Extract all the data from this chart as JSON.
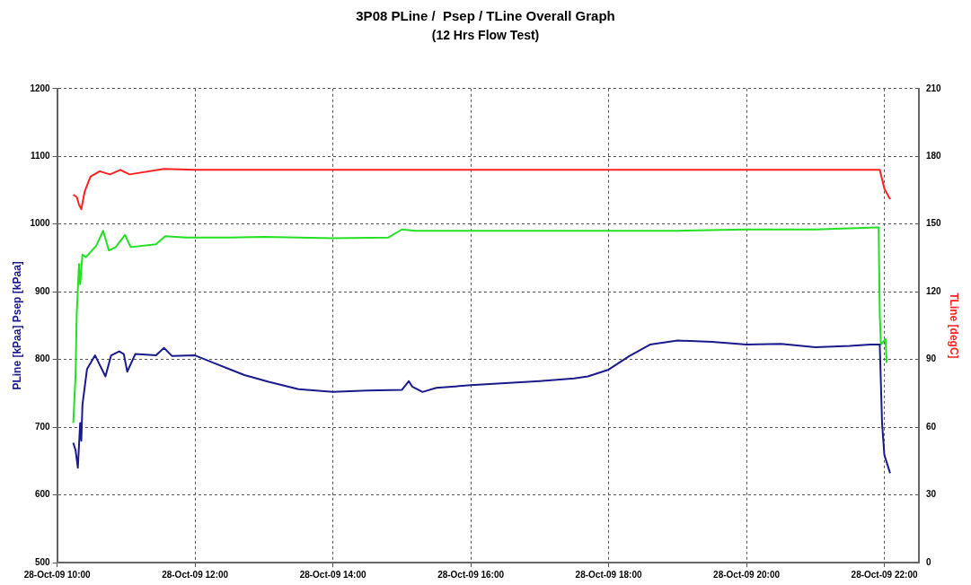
{
  "chart_data": {
    "type": "line",
    "title": "3P08 PLine /  Psep / TLine Overall Graph",
    "subtitle": "(12 Hrs Flow Test)",
    "ylabel": "PLine [kPaa] Psep [kPaa]",
    "y2label": "TLine [degC]",
    "xlim": [
      "--10-28T10:00",
      "--10-28T22:30"
    ],
    "xticks": [
      {
        "value": "--10-28T10:00",
        "label": "28-Oct-09 10:00"
      },
      {
        "value": "--10-28T12:00",
        "label": "28-Oct-09 12:00"
      },
      {
        "value": "--10-28T14:00",
        "label": "28-Oct-09 14:00"
      },
      {
        "value": "--10-28T16:00",
        "label": "28-Oct-09 16:00"
      },
      {
        "value": "--10-28T18:00",
        "label": "28-Oct-09 18:00"
      },
      {
        "value": "--10-28T20:00",
        "label": "28-Oct-09 20:00"
      },
      {
        "value": "--10-28T22:00",
        "label": "28-Oct-09 22:00"
      }
    ],
    "ylim": [
      500,
      1200
    ],
    "yticks": [
      500,
      600,
      700,
      800,
      900,
      1000,
      1100,
      1200
    ],
    "y2lim": [
      0,
      210
    ],
    "y2ticks": [
      0,
      30,
      60,
      90,
      120,
      150,
      180,
      210
    ],
    "grid": true,
    "legend": false,
    "marker": "none",
    "line_style": "solid",
    "series": [
      {
        "color": "#1a1a8c",
        "x": [
          "--10-28T10:14",
          "--10-28T10:16",
          "--10-28T10:18",
          "--10-28T10:20",
          "--10-28T10:21",
          "--10-28T10:22",
          "--10-28T10:26",
          "--10-28T10:33",
          "--10-28T10:42",
          "--10-28T10:47",
          "--10-28T10:54",
          "--10-28T10:58",
          "--10-28T11:01",
          "--10-28T11:08",
          "--10-28T11:26",
          "--10-28T11:33",
          "--10-28T11:40",
          "--10-28T12:00",
          "--10-28T12:16",
          "--10-28T12:43",
          "--10-28T13:04",
          "--10-28T13:30",
          "--10-28T14:00",
          "--10-28T14:30",
          "--10-28T15:00",
          "--10-28T15:06",
          "--10-28T15:09",
          "--10-28T15:18",
          "--10-28T15:30",
          "--10-28T16:00",
          "--10-28T16:30",
          "--10-28T17:00",
          "--10-28T17:30",
          "--10-28T17:42",
          "--10-28T18:00",
          "--10-28T18:18",
          "--10-28T18:36",
          "--10-28T19:00",
          "--10-28T19:30",
          "--10-28T20:00",
          "--10-28T20:30",
          "--10-28T21:00",
          "--10-28T21:30",
          "--10-28T21:48",
          "--10-28T21:56",
          "--10-28T21:58",
          "--10-28T22:00",
          "--10-28T22:05"
        ],
        "values": [
          677,
          666,
          640,
          706,
          680,
          733,
          786,
          806,
          775,
          806,
          812,
          808,
          782,
          808,
          806,
          817,
          805,
          806,
          795,
          777,
          767,
          756,
          752,
          754,
          755,
          768,
          760,
          752,
          758,
          762,
          765,
          768,
          772,
          775,
          785,
          805,
          822,
          828,
          826,
          822,
          823,
          818,
          820,
          822,
          822,
          706,
          659,
          632
        ]
      },
      {
        "color": "#22e022",
        "x": [
          "--10-28T10:14",
          "--10-28T10:16",
          "--10-28T10:17",
          "--10-28T10:19",
          "--10-28T10:20",
          "--10-28T10:22",
          "--10-28T10:25",
          "--10-28T10:34",
          "--10-28T10:40",
          "--10-28T10:45",
          "--10-28T10:51",
          "--10-28T10:59",
          "--10-28T11:04",
          "--10-28T11:26",
          "--10-28T11:34",
          "--10-28T11:52",
          "--10-28T12:30",
          "--10-28T13:00",
          "--10-28T14:00",
          "--10-28T14:48",
          "--10-28T15:00",
          "--10-28T15:12",
          "--10-28T16:00",
          "--10-28T17:00",
          "--10-28T18:00",
          "--10-28T19:00",
          "--10-28T20:00",
          "--10-28T21:00",
          "--10-28T21:53",
          "--10-28T21:55",
          "--10-28T21:56",
          "--10-28T21:57",
          "--10-28T21:59",
          "--10-28T22:01",
          "--10-28T22:02"
        ],
        "values": [
          706,
          777,
          866,
          941,
          911,
          955,
          951,
          968,
          990,
          961,
          966,
          984,
          966,
          970,
          982,
          980,
          980,
          981,
          979,
          980,
          992,
          990,
          990,
          990,
          990,
          990,
          992,
          992,
          995,
          995,
          866,
          822,
          826,
          830,
          795
        ]
      },
      {
        "color": "#ff2020",
        "axis": "y2",
        "x": [
          "--10-28T10:14",
          "--10-28T10:17",
          "--10-28T10:19",
          "--10-28T10:21",
          "--10-28T10:24",
          "--10-28T10:29",
          "--10-28T10:37",
          "--10-28T10:46",
          "--10-28T10:55",
          "--10-28T11:03",
          "--10-28T11:33",
          "--10-28T12:00",
          "--10-28T13:00",
          "--10-28T14:00",
          "--10-28T15:00",
          "--10-28T16:00",
          "--10-28T17:00",
          "--10-28T18:00",
          "--10-28T19:00",
          "--10-28T20:00",
          "--10-28T21:00",
          "--10-28T21:56",
          "--10-28T22:00",
          "--10-28T22:05"
        ],
        "values": [
          163,
          162,
          158.6,
          156.6,
          164.5,
          171,
          173.4,
          172,
          174,
          172,
          174.4,
          174,
          174,
          174,
          174,
          174,
          174,
          174,
          174,
          174,
          174,
          174,
          165.7,
          161
        ]
      }
    ]
  }
}
